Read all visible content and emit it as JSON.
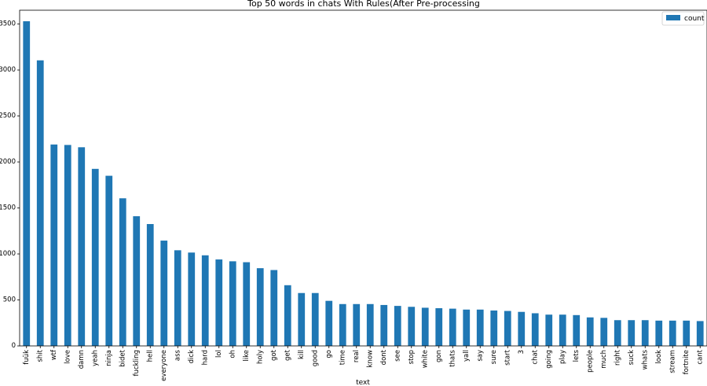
{
  "chart_data": {
    "type": "bar",
    "title": "Top 50 words in chats With Rules(After Pre-processing",
    "xlabel": "text",
    "ylabel": "",
    "ylim": [
      0,
      3650
    ],
    "yticks": [
      0,
      500,
      1000,
      1500,
      2000,
      2500,
      3000,
      3500
    ],
    "legend": {
      "placement": "top-right",
      "entries": [
        "count"
      ]
    },
    "bar_color": "#1f77b4",
    "grid": false,
    "categories": [
      "fuük",
      "shit",
      "wtf",
      "love",
      "damn",
      "yeah",
      "ninja",
      "bidet",
      "fuckling",
      "hell",
      "everyone",
      "ass",
      "dick",
      "hard",
      "lol",
      "oh",
      "like",
      "holy",
      "got",
      "get",
      "kill",
      "good",
      "go",
      "time",
      "real",
      "know",
      "dont",
      "see",
      "stop",
      "white",
      "gon",
      "thats",
      "yall",
      "say",
      "sure",
      "start",
      "3",
      "chat",
      "going",
      "play",
      "lets",
      "people",
      "much",
      "right",
      "suck",
      "whats",
      "look",
      "stream",
      "fortnite",
      "cant"
    ],
    "series": [
      {
        "name": "count",
        "values": [
          3530,
          3105,
          2190,
          2185,
          2160,
          1925,
          1850,
          1605,
          1410,
          1325,
          1145,
          1040,
          1015,
          985,
          940,
          920,
          910,
          845,
          825,
          660,
          575,
          575,
          490,
          455,
          455,
          455,
          445,
          435,
          425,
          415,
          410,
          405,
          395,
          395,
          385,
          380,
          370,
          355,
          340,
          340,
          335,
          310,
          305,
          280,
          280,
          280,
          275,
          275,
          275,
          270
        ]
      }
    ]
  }
}
